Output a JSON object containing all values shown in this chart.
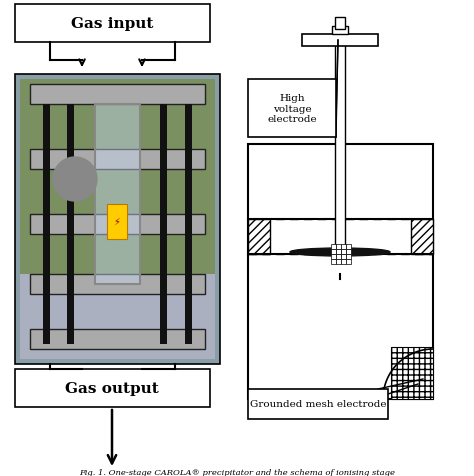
{
  "bg_color": "#ffffff",
  "fig_width": 4.74,
  "fig_height": 4.77,
  "caption": "Fig. 1. One-stage CAROLA® precipitator and the schema of ionising stage",
  "label_gas_input": "Gas input",
  "label_gas_output": "Gas output",
  "label_hv_electrode": "High\nvoltage\nelectrode",
  "label_grounded": "Grounded mesh electrode",
  "lc": "#000000",
  "photo_bg": "#8899aa",
  "photo_green": "#7a9060",
  "photo_plate": "#aaaaaa",
  "photo_rod": "#111111",
  "glass_color": [
    0.78,
    0.85,
    0.95,
    0.5
  ]
}
